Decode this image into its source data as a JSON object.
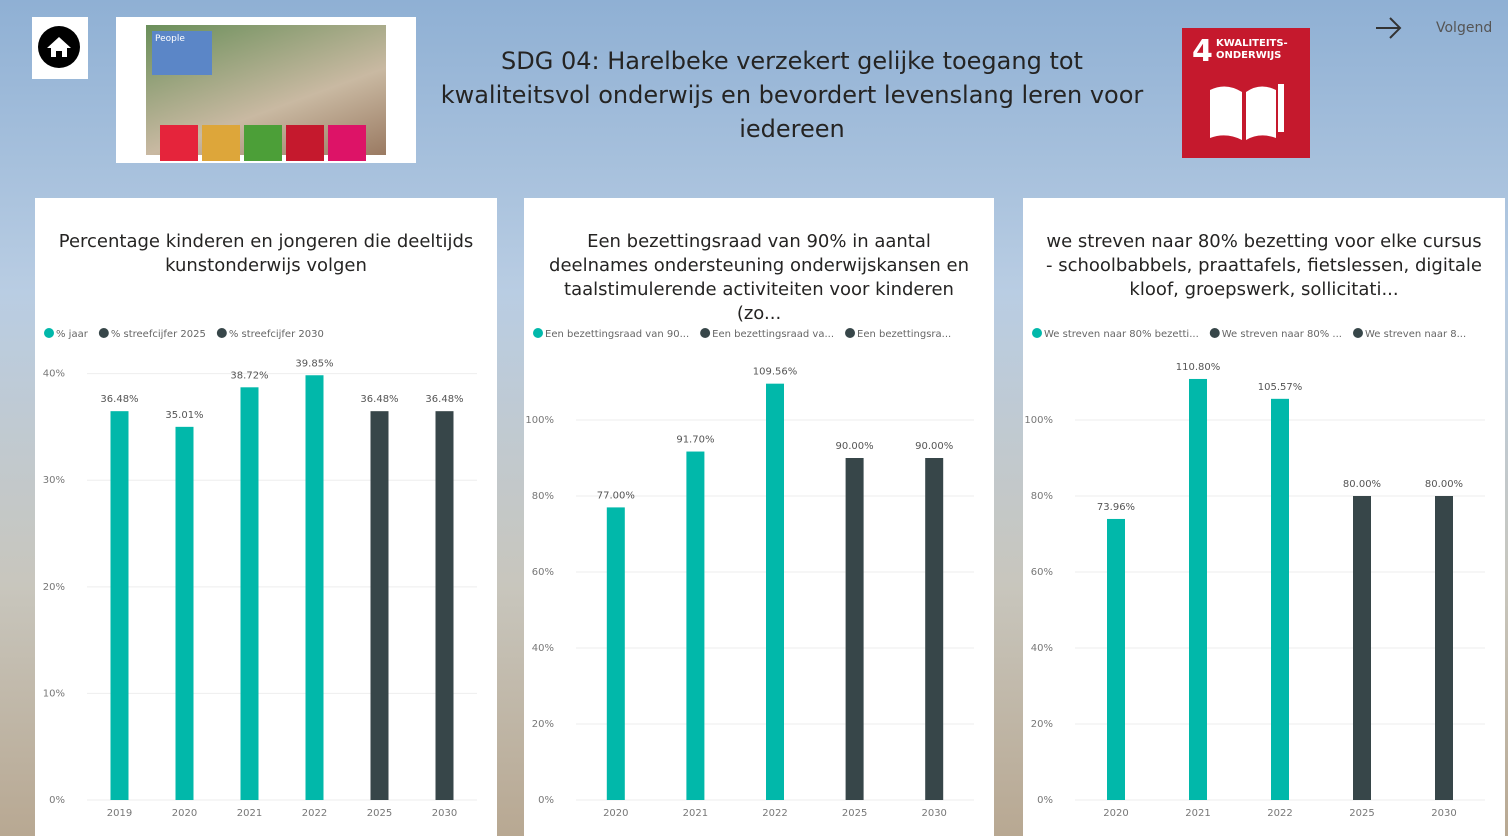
{
  "header": {
    "title": "SDG 04: Harelbeke verzekert gelijke toegang tot kwaliteitsvol onderwijs en bevordert levenslang leren voor iedereen",
    "next": "Volgend",
    "photo_sign": "People",
    "sdg_number": "4",
    "sdg_label": [
      "KWALITEITS-",
      "ONDERWIJS"
    ]
  },
  "chart_data": [
    {
      "type": "bar",
      "title": "Percentage kinderen en jongeren die deeltijds kunstonderwijs volgen",
      "categories": [
        "2019",
        "2020",
        "2021",
        "2022",
        "2025",
        "2030"
      ],
      "series": [
        {
          "name": "% jaar",
          "color": "#01b8aa",
          "values": [
            36.48,
            35.01,
            38.72,
            39.85,
            null,
            null
          ],
          "value_labels": [
            "36.48%",
            "35.01%",
            "38.72%",
            "39.85%",
            null,
            null
          ]
        },
        {
          "name": "% streefcijfer 2025",
          "color": "#374649",
          "values": [
            null,
            null,
            null,
            null,
            36.48,
            null
          ],
          "value_labels": [
            null,
            null,
            null,
            null,
            "36.48%",
            null
          ]
        },
        {
          "name": "% streefcijfer 2030",
          "color": "#374649",
          "values": [
            null,
            null,
            null,
            null,
            null,
            36.48
          ],
          "value_labels": [
            null,
            null,
            null,
            null,
            null,
            "36.48%"
          ]
        }
      ],
      "ylim": [
        0,
        41
      ],
      "yticks": [
        {
          "value": 0,
          "label": "0%"
        },
        {
          "value": 10,
          "label": "10%"
        },
        {
          "value": 20,
          "label": "20%"
        },
        {
          "value": 30,
          "label": "30%"
        },
        {
          "value": 40,
          "label": "40%"
        }
      ],
      "grid": true,
      "legend": "top-left"
    },
    {
      "type": "bar",
      "title": "Een bezettingsraad van 90% in aantal deelnames ondersteuning onderwijskansen en taalstimulerende activiteiten voor kinderen (zo...",
      "categories": [
        "2020",
        "2021",
        "2022",
        "2025",
        "2030"
      ],
      "series": [
        {
          "name": "Een bezettingsraad van 90...",
          "color": "#01b8aa",
          "values": [
            77.0,
            91.7,
            109.56,
            null,
            null
          ],
          "value_labels": [
            "77.00%",
            "91.70%",
            "109.56%",
            null,
            null
          ]
        },
        {
          "name": "Een bezettingsraad va...",
          "color": "#374649",
          "values": [
            null,
            null,
            null,
            90.0,
            null
          ],
          "value_labels": [
            null,
            null,
            null,
            "90.00%",
            null
          ]
        },
        {
          "name": "Een bezettingsra...",
          "color": "#374649",
          "values": [
            null,
            null,
            null,
            null,
            90.0
          ],
          "value_labels": [
            null,
            null,
            null,
            null,
            "90.00%"
          ]
        }
      ],
      "ylim": [
        0,
        115
      ],
      "yticks": [
        {
          "value": 0,
          "label": "0%"
        },
        {
          "value": 20,
          "label": "20%"
        },
        {
          "value": 40,
          "label": "40%"
        },
        {
          "value": 60,
          "label": "60%"
        },
        {
          "value": 80,
          "label": "80%"
        },
        {
          "value": 100,
          "label": "100%"
        }
      ],
      "grid": true,
      "legend": "top-left"
    },
    {
      "type": "bar",
      "title": "we streven naar 80% bezetting voor elke cursus - schoolbabbels, praattafels, fietslessen, digitale kloof, groepswerk, sollicitati...",
      "categories": [
        "2020",
        "2021",
        "2022",
        "2025",
        "2030"
      ],
      "series": [
        {
          "name": "We streven naar 80% bezetti...",
          "color": "#01b8aa",
          "values": [
            73.96,
            110.8,
            105.57,
            null,
            null
          ],
          "value_labels": [
            "73.96%",
            "110.80%",
            "105.57%",
            null,
            null
          ]
        },
        {
          "name": "We streven naar 80% ...",
          "color": "#374649",
          "values": [
            null,
            null,
            null,
            80.0,
            null
          ],
          "value_labels": [
            null,
            null,
            null,
            "80.00%",
            null
          ]
        },
        {
          "name": "We streven naar 8...",
          "color": "#374649",
          "values": [
            null,
            null,
            null,
            null,
            80.0
          ],
          "value_labels": [
            null,
            null,
            null,
            null,
            "80.00%"
          ]
        }
      ],
      "ylim": [
        0,
        115
      ],
      "yticks": [
        {
          "value": 0,
          "label": "0%"
        },
        {
          "value": 20,
          "label": "20%"
        },
        {
          "value": 40,
          "label": "40%"
        },
        {
          "value": 60,
          "label": "60%"
        },
        {
          "value": 80,
          "label": "80%"
        },
        {
          "value": 100,
          "label": "100%"
        }
      ],
      "grid": true,
      "legend": "top-left"
    }
  ]
}
